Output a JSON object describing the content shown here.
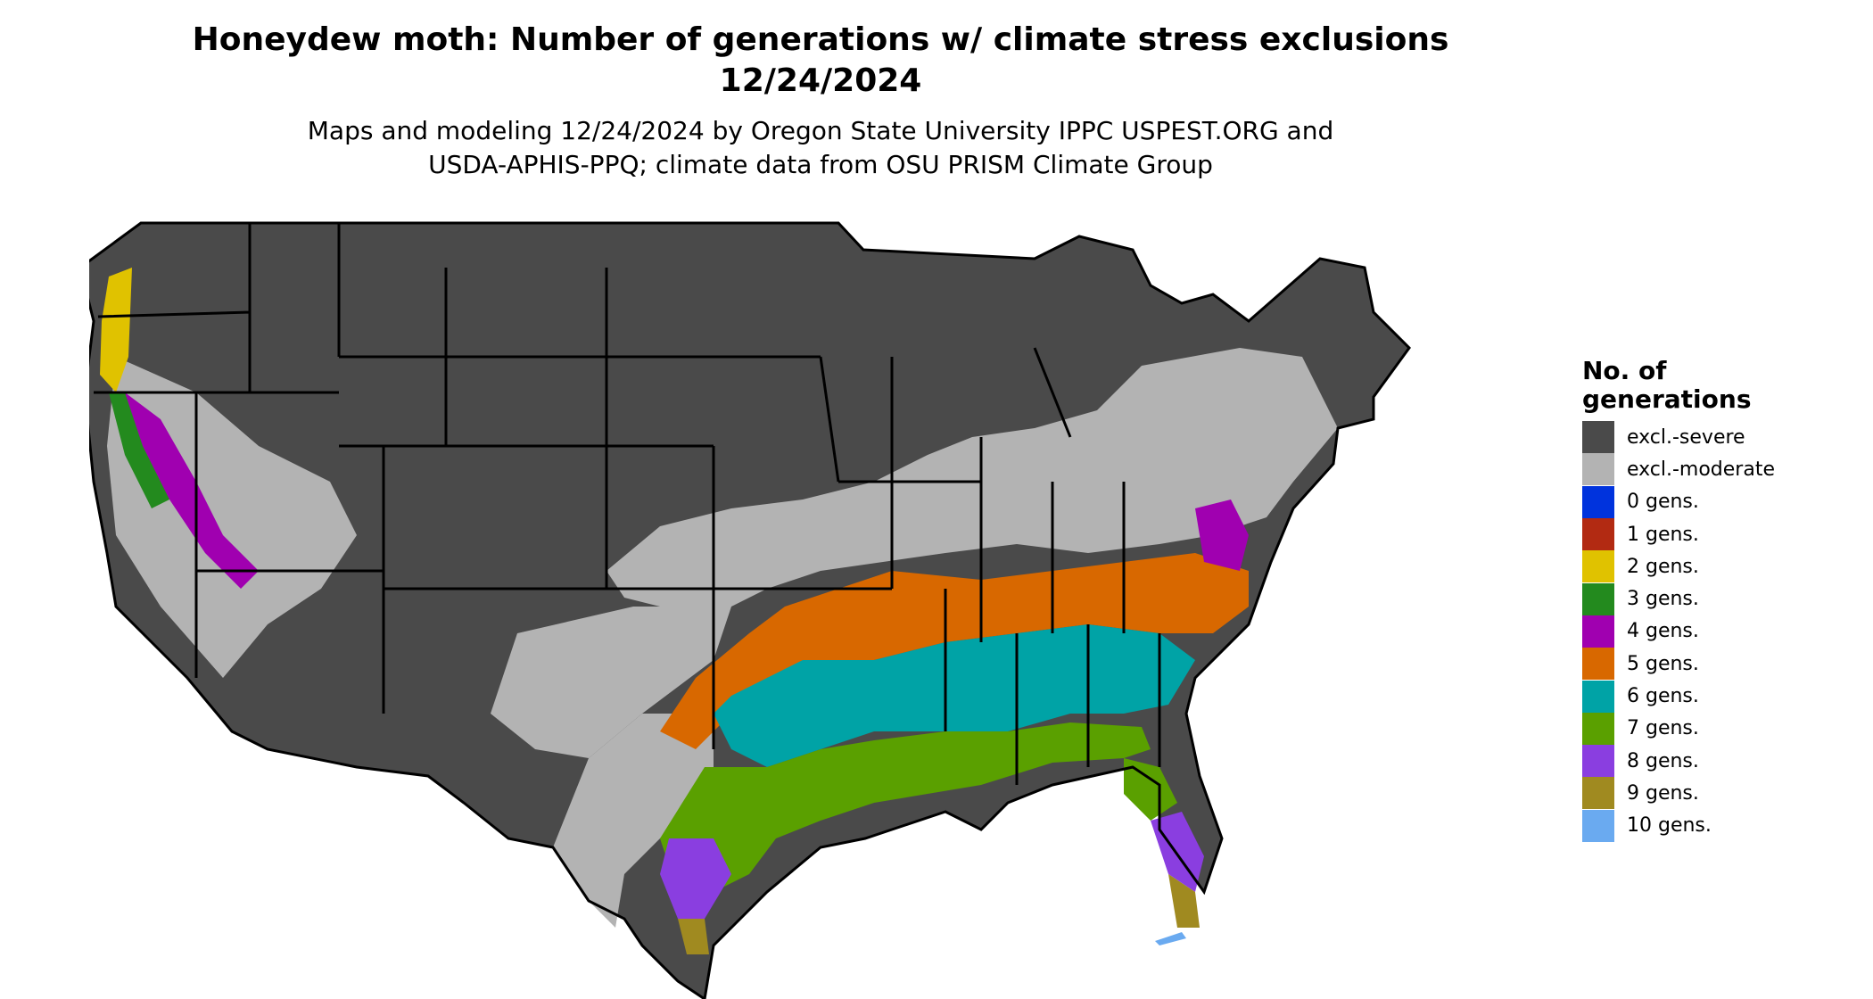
{
  "title_line1": "Honeydew moth: Number of generations w/ climate stress exclusions",
  "title_line2": "12/24/2024",
  "subtitle_line1": "Maps and modeling 12/24/2024 by Oregon State University IPPC USPEST.ORG and",
  "subtitle_line2": "USDA-APHIS-PPQ; climate data from OSU PRISM Climate Group",
  "legend": {
    "title_line1": "No. of",
    "title_line2": "generations",
    "items": [
      {
        "label": "excl.-severe",
        "color": "#4a4a4a"
      },
      {
        "label": "excl.-moderate",
        "color": "#b3b3b3"
      },
      {
        "label": "0 gens.",
        "color": "#0033dd"
      },
      {
        "label": "1 gens.",
        "color": "#b22a12"
      },
      {
        "label": "2 gens.",
        "color": "#e0c200"
      },
      {
        "label": "3 gens.",
        "color": "#238a1e"
      },
      {
        "label": "4 gens.",
        "color": "#a000b0"
      },
      {
        "label": "5 gens.",
        "color": "#d86800"
      },
      {
        "label": "6 gens.",
        "color": "#00a3a6"
      },
      {
        "label": "7 gens.",
        "color": "#5aa000"
      },
      {
        "label": "8 gens.",
        "color": "#8a3ee0"
      },
      {
        "label": "9 gens.",
        "color": "#a08a20"
      },
      {
        "label": "10 gens.",
        "color": "#6aaaf0"
      }
    ]
  }
}
